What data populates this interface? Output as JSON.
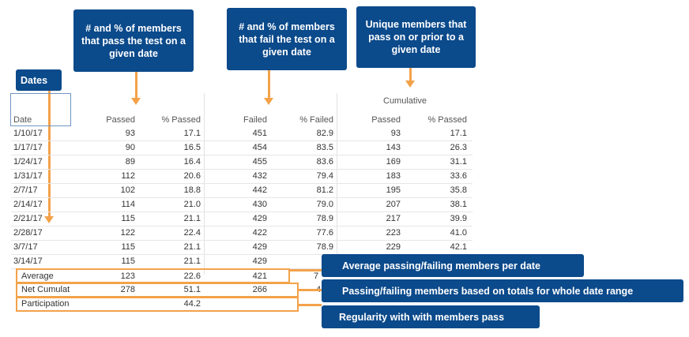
{
  "callouts": {
    "dates": "Dates",
    "passed": "# and % of members that pass the test on a given date",
    "failed": "# and % of members that fail the test on a given date",
    "cumulative": "Unique members that pass on or prior to a given date",
    "average": "Average passing/failing members per date",
    "net": "Passing/failing members based on totals for whole date range",
    "participation": "Regularity with with members pass"
  },
  "table": {
    "group_header": "Cumulative",
    "headers": [
      "Date",
      "Passed",
      "% Passed",
      "Failed",
      "% Failed",
      "Passed",
      "% Passed"
    ],
    "rows": [
      [
        "1/10/17",
        "93",
        "17.1",
        "451",
        "82.9",
        "93",
        "17.1"
      ],
      [
        "1/17/17",
        "90",
        "16.5",
        "454",
        "83.5",
        "143",
        "26.3"
      ],
      [
        "1/24/17",
        "89",
        "16.4",
        "455",
        "83.6",
        "169",
        "31.1"
      ],
      [
        "1/31/17",
        "112",
        "20.6",
        "432",
        "79.4",
        "183",
        "33.6"
      ],
      [
        "2/7/17",
        "102",
        "18.8",
        "442",
        "81.2",
        "195",
        "35.8"
      ],
      [
        "2/14/17",
        "114",
        "21.0",
        "430",
        "79.0",
        "207",
        "38.1"
      ],
      [
        "2/21/17",
        "115",
        "21.1",
        "429",
        "78.9",
        "217",
        "39.9"
      ],
      [
        "2/28/17",
        "122",
        "22.4",
        "422",
        "77.6",
        "223",
        "41.0"
      ],
      [
        "3/7/17",
        "115",
        "21.1",
        "429",
        "78.9",
        "229",
        "42.1"
      ],
      [
        "3/14/17",
        "115",
        "21.1",
        "429",
        "7",
        "",
        ""
      ]
    ],
    "average": {
      "label": "Average",
      "passed": "123",
      "pct_passed": "22.6",
      "failed": "421",
      "pct_failed": "7"
    },
    "net": {
      "label": "Net Cumulat",
      "passed": "278",
      "pct_passed": "51.1",
      "failed": "266",
      "pct_failed": "4"
    },
    "participation": {
      "label": "Participation",
      "pct_passed": "44.2"
    }
  }
}
